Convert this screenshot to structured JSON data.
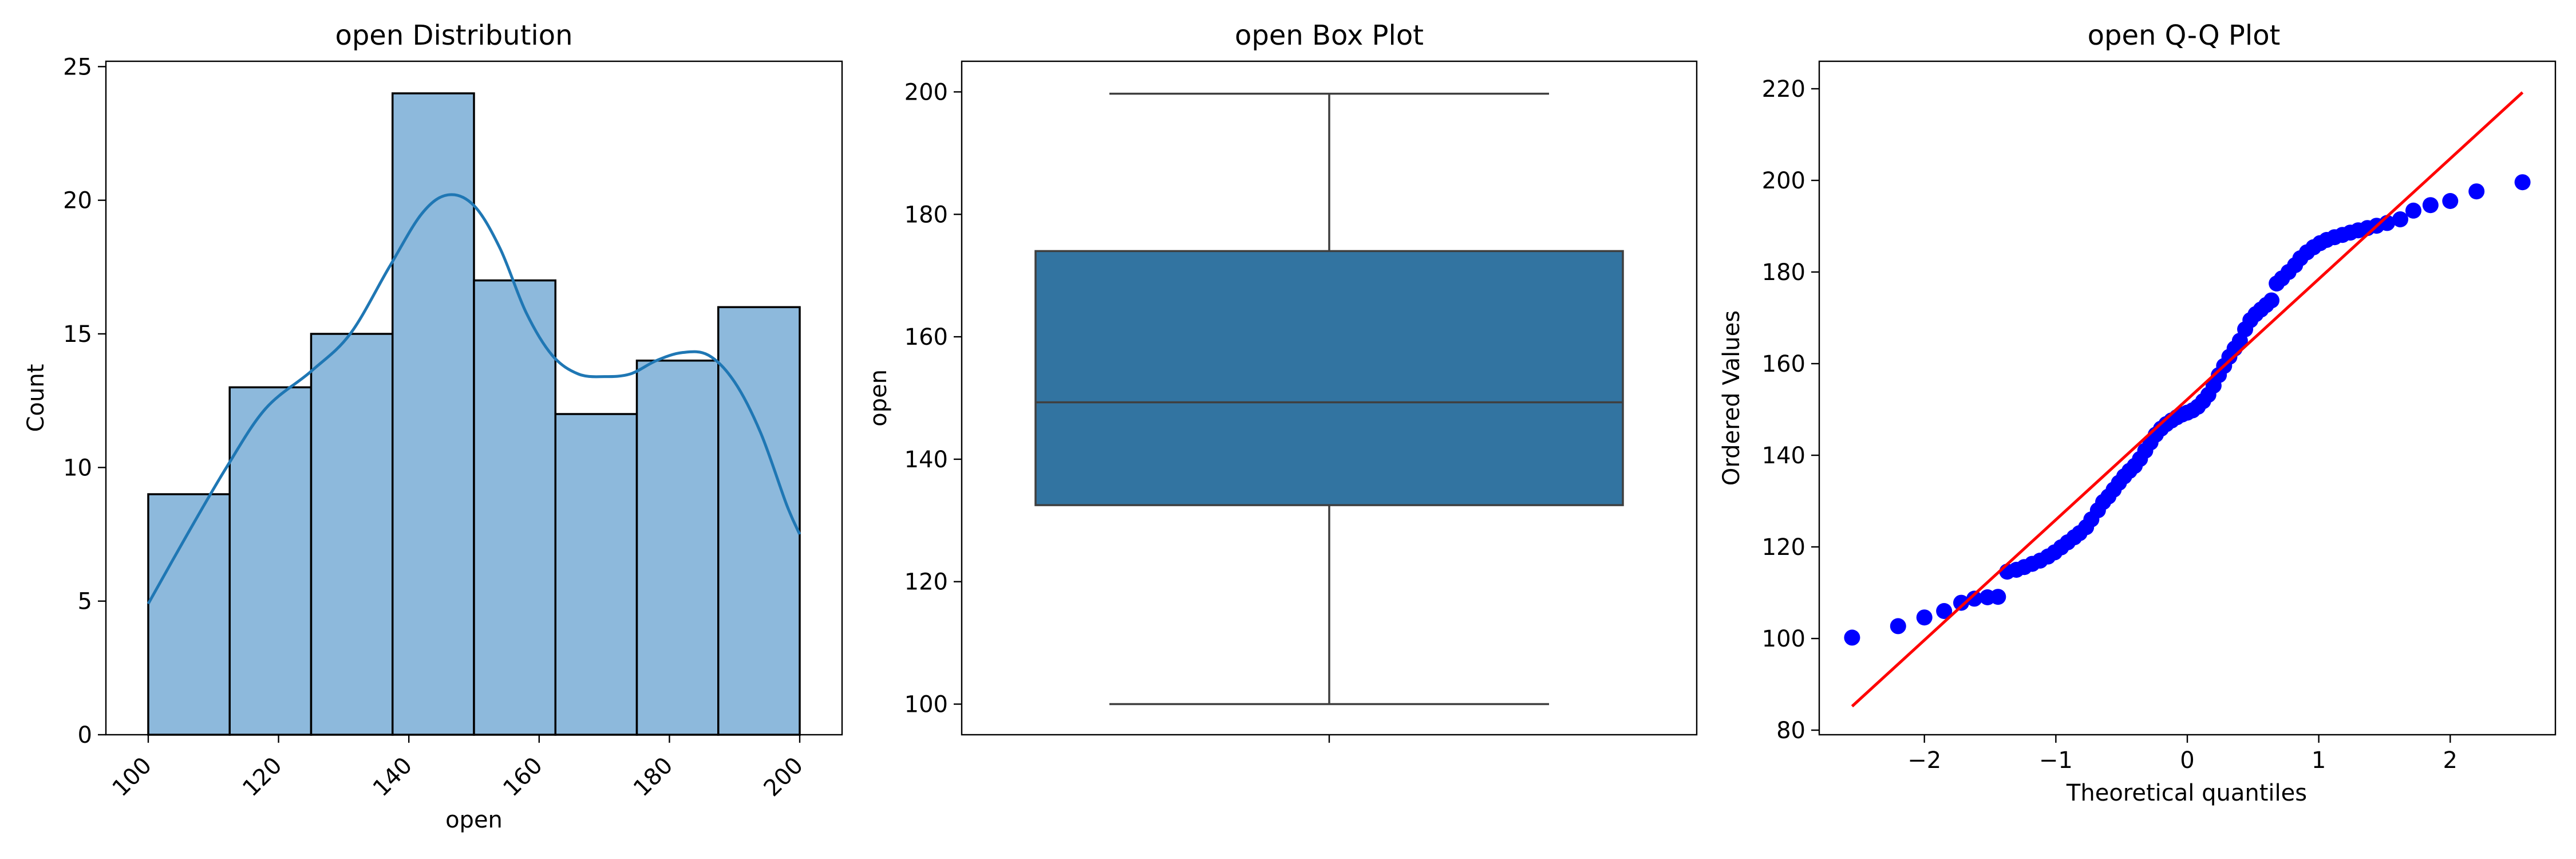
{
  "chart_data": [
    {
      "type": "bar",
      "subtype": "histogram-with-kde",
      "title": "open Distribution",
      "xlabel": "open",
      "ylabel": "Count",
      "bin_edges": [
        100,
        112.5,
        125,
        137.5,
        150,
        162.5,
        175,
        187.5,
        200
      ],
      "values": [
        9,
        13,
        15,
        24,
        17,
        12,
        14,
        16
      ],
      "kde": {
        "x": [
          100,
          106,
          112,
          118,
          125,
          131,
          137,
          142,
          146,
          150,
          154,
          158,
          162,
          166,
          170,
          174,
          178,
          182,
          186,
          190,
          194,
          198,
          200
        ],
        "y": [
          4.9,
          7.5,
          10.0,
          12.2,
          13.6,
          15.0,
          17.5,
          19.5,
          20.2,
          19.8,
          18.2,
          15.8,
          14.2,
          13.5,
          13.4,
          13.5,
          14.0,
          14.3,
          14.2,
          13.2,
          11.3,
          8.6,
          7.5
        ]
      },
      "xlim": [
        93.5,
        206.5
      ],
      "ylim": [
        0,
        25.2
      ],
      "xticks": [
        "100",
        "120",
        "140",
        "160",
        "180",
        "200"
      ],
      "yticks": [
        "0",
        "5",
        "10",
        "15",
        "20",
        "25"
      ],
      "bar_color": "#8db9dc",
      "line_color": "#1f77b4",
      "grid": false
    },
    {
      "type": "box",
      "title": "open Box Plot",
      "ylabel": "open",
      "min": 100,
      "q1": 132.5,
      "median": 149.3,
      "q3": 174,
      "max": 199.7,
      "ylim": [
        95,
        205
      ],
      "yticks": [
        "100",
        "120",
        "140",
        "160",
        "180",
        "200"
      ],
      "box_color": "#3274a1",
      "grid": false
    },
    {
      "type": "scatter",
      "subtype": "qq-plot",
      "title": "open Q-Q Plot",
      "xlabel": "Theoretical quantiles",
      "ylabel": "Ordered Values",
      "points": [
        [
          -2.55,
          100.2
        ],
        [
          -2.2,
          102.7
        ],
        [
          -2.0,
          104.6
        ],
        [
          -1.85,
          106.0
        ],
        [
          -1.72,
          107.8
        ],
        [
          -1.62,
          108.7
        ],
        [
          -1.52,
          109.0
        ],
        [
          -1.44,
          109.1
        ],
        [
          -1.37,
          114.6
        ],
        [
          -1.3,
          115.0
        ],
        [
          -1.24,
          115.6
        ],
        [
          -1.18,
          116.3
        ],
        [
          -1.12,
          117.0
        ],
        [
          -1.06,
          117.9
        ],
        [
          -1.01,
          118.8
        ],
        [
          -0.96,
          119.9
        ],
        [
          -0.91,
          121.0
        ],
        [
          -0.86,
          122.1
        ],
        [
          -0.82,
          123.0
        ],
        [
          -0.77,
          124.3
        ],
        [
          -0.73,
          126.0
        ],
        [
          -0.68,
          128.0
        ],
        [
          -0.64,
          129.8
        ],
        [
          -0.6,
          131.0
        ],
        [
          -0.56,
          132.5
        ],
        [
          -0.52,
          134.0
        ],
        [
          -0.48,
          135.4
        ],
        [
          -0.44,
          136.6
        ],
        [
          -0.4,
          137.7
        ],
        [
          -0.36,
          139.2
        ],
        [
          -0.32,
          141.0
        ],
        [
          -0.28,
          142.8
        ],
        [
          -0.24,
          144.5
        ],
        [
          -0.2,
          145.8
        ],
        [
          -0.16,
          146.8
        ],
        [
          -0.12,
          147.6
        ],
        [
          -0.08,
          148.3
        ],
        [
          -0.04,
          148.9
        ],
        [
          0.0,
          149.3
        ],
        [
          0.04,
          149.8
        ],
        [
          0.08,
          150.6
        ],
        [
          0.12,
          151.8
        ],
        [
          0.16,
          153.2
        ],
        [
          0.2,
          155.2
        ],
        [
          0.24,
          157.5
        ],
        [
          0.28,
          159.5
        ],
        [
          0.32,
          161.5
        ],
        [
          0.36,
          163.3
        ],
        [
          0.4,
          165.0
        ],
        [
          0.44,
          167.5
        ],
        [
          0.48,
          169.5
        ],
        [
          0.52,
          170.8
        ],
        [
          0.56,
          171.8
        ],
        [
          0.6,
          172.8
        ],
        [
          0.64,
          173.8
        ],
        [
          0.68,
          177.5
        ],
        [
          0.72,
          178.6
        ],
        [
          0.77,
          180.0
        ],
        [
          0.82,
          181.5
        ],
        [
          0.86,
          183.0
        ],
        [
          0.91,
          184.3
        ],
        [
          0.96,
          185.4
        ],
        [
          1.01,
          186.3
        ],
        [
          1.06,
          187.0
        ],
        [
          1.12,
          187.6
        ],
        [
          1.18,
          188.1
        ],
        [
          1.24,
          188.6
        ],
        [
          1.3,
          189.1
        ],
        [
          1.37,
          189.6
        ],
        [
          1.44,
          190.1
        ],
        [
          1.52,
          190.7
        ],
        [
          1.62,
          191.5
        ],
        [
          1.72,
          193.4
        ],
        [
          1.85,
          194.6
        ],
        [
          2.0,
          195.5
        ],
        [
          2.2,
          197.6
        ],
        [
          2.55,
          199.6
        ]
      ],
      "fit_line": {
        "x": [
          -2.55,
          2.55
        ],
        "y": [
          85.2,
          219.2
        ]
      },
      "xlim": [
        -2.8,
        2.8
      ],
      "ylim": [
        79,
        226
      ],
      "xticks": [
        "−2",
        "−1",
        "0",
        "1",
        "2"
      ],
      "yticks": [
        "80",
        "100",
        "120",
        "140",
        "160",
        "180",
        "200",
        "220"
      ],
      "point_color": "#0000ff",
      "line_color": "#ff0000",
      "grid": false
    }
  ]
}
